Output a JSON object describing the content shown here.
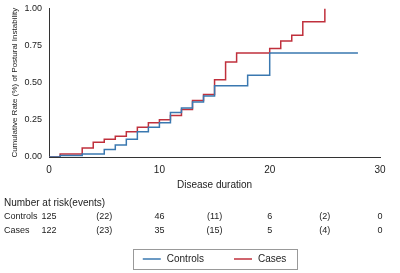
{
  "chart_data": {
    "type": "line",
    "x_label": "Disease duration",
    "y_label": "Cumulative Rate (%) of Postural Instability",
    "xlim": [
      0,
      30
    ],
    "xticks": [
      0,
      10,
      20,
      30
    ],
    "ylim": [
      0,
      1
    ],
    "yticks": [
      {
        "value": 0,
        "label": "0.00"
      },
      {
        "value": 0.25,
        "label": "0.25"
      },
      {
        "value": 0.5,
        "label": "0.50"
      },
      {
        "value": 0.75,
        "label": "0.75"
      },
      {
        "value": 1,
        "label": "1.00"
      }
    ],
    "grid": false,
    "legend": "bottom",
    "series": [
      {
        "name": "Controls",
        "color": "#3a78b0",
        "line_style": "step",
        "x": [
          0,
          1,
          3,
          5,
          6,
          7,
          8,
          9,
          10,
          11,
          12,
          13,
          14,
          15,
          18,
          20,
          28
        ],
        "values": [
          0,
          0.01,
          0.02,
          0.05,
          0.08,
          0.12,
          0.17,
          0.2,
          0.23,
          0.3,
          0.33,
          0.37,
          0.41,
          0.48,
          0.55,
          0.7,
          0.7
        ]
      },
      {
        "name": "Cases",
        "color": "#c0303c",
        "line_style": "step",
        "x": [
          0,
          1,
          3,
          4,
          5,
          6,
          7,
          8,
          9,
          10,
          11,
          12,
          13,
          14,
          15,
          16,
          17,
          20,
          21,
          22,
          23,
          25
        ],
        "values": [
          0,
          0.02,
          0.06,
          0.1,
          0.12,
          0.14,
          0.17,
          0.2,
          0.23,
          0.25,
          0.28,
          0.32,
          0.38,
          0.42,
          0.52,
          0.64,
          0.7,
          0.73,
          0.78,
          0.82,
          0.91,
          1.0
        ]
      }
    ],
    "risk_table": {
      "title": "Number at risk(events)",
      "times": [
        0,
        10,
        20,
        30
      ],
      "rows": [
        {
          "name": "Controls",
          "at_risk": [
            125,
            46,
            6,
            0
          ],
          "events": [
            "(22)",
            "(11)",
            "(2)"
          ]
        },
        {
          "name": "Cases",
          "at_risk": [
            122,
            35,
            5,
            0
          ],
          "events": [
            "(23)",
            "(15)",
            "(4)"
          ]
        }
      ]
    }
  }
}
